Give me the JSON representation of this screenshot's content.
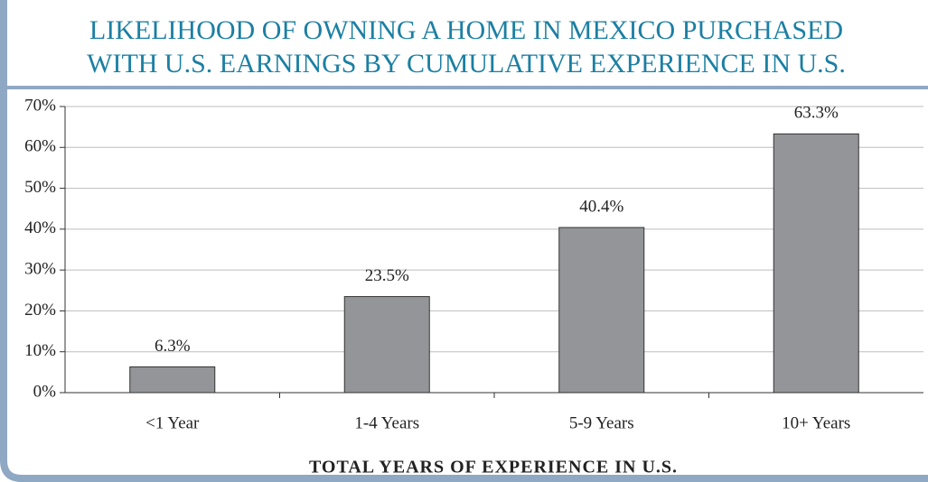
{
  "chart_data": {
    "type": "bar",
    "title": [
      "LIKELIHOOD OF OWNING A HOME IN MEXICO PURCHASED",
      "WITH U.S. EARNINGS BY CUMULATIVE EXPERIENCE IN U.S."
    ],
    "x_label": "TOTAL YEARS OF EXPERIENCE IN U.S.",
    "categories": [
      "<1 Year",
      "1-4 Years",
      "5-9 Years",
      "10+ Years"
    ],
    "values": [
      6.3,
      23.5,
      40.4,
      63.3
    ],
    "value_labels": [
      "6.3%",
      "23.5%",
      "40.4%",
      "63.3%"
    ],
    "color": "#939598",
    "ylim": [
      0,
      70
    ],
    "yticks": [
      {
        "value": 0,
        "label": "0%"
      },
      {
        "value": 10,
        "label": "10%"
      },
      {
        "value": 20,
        "label": "20%"
      },
      {
        "value": 30,
        "label": "30%"
      },
      {
        "value": 40,
        "label": "40%"
      },
      {
        "value": 50,
        "label": "50%"
      },
      {
        "value": 60,
        "label": "60%"
      },
      {
        "value": 70,
        "label": "70%"
      }
    ],
    "grid": true
  }
}
